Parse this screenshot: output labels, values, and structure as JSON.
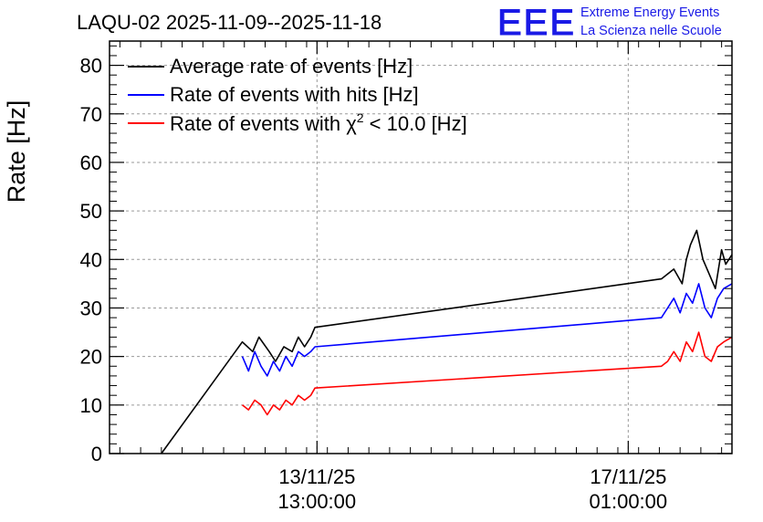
{
  "chart_data": {
    "type": "line",
    "title": "LAQU-02 2025-11-09--2025-11-18",
    "ylabel": "Rate [Hz]",
    "xlabel": "",
    "ylim": [
      0,
      85
    ],
    "yticks": [
      0,
      10,
      20,
      30,
      40,
      50,
      60,
      70,
      80
    ],
    "xlim": [
      0,
      15
    ],
    "xticks": [
      {
        "x": 5.0,
        "date": "13/11/25",
        "time": "13:00:00"
      },
      {
        "x": 12.5,
        "date": "17/11/25",
        "time": "01:00:00"
      }
    ],
    "grid": true,
    "legend_position": "top-left",
    "series": [
      {
        "name": "Average rate of events [Hz]",
        "color": "#000000",
        "x": [
          1.25,
          3.2,
          3.45,
          3.6,
          3.85,
          4.0,
          4.2,
          4.4,
          4.55,
          4.7,
          4.85,
          4.95,
          13.3,
          13.6,
          13.8,
          13.9,
          14.0,
          14.15,
          14.3,
          14.45,
          14.6,
          14.75,
          14.85,
          15.0
        ],
        "values": [
          0,
          23,
          21,
          24,
          21,
          19,
          22,
          21,
          24,
          22,
          24,
          26,
          36,
          38,
          35,
          40,
          43,
          46,
          40,
          37,
          34,
          42,
          39,
          41
        ]
      },
      {
        "name": "Rate of events with hits [Hz]",
        "color": "#0000ff",
        "x": [
          3.2,
          3.35,
          3.5,
          3.65,
          3.8,
          3.95,
          4.1,
          4.25,
          4.4,
          4.55,
          4.7,
          4.85,
          4.95,
          13.3,
          13.45,
          13.6,
          13.75,
          13.9,
          14.05,
          14.2,
          14.35,
          14.5,
          14.65,
          14.8,
          15.0
        ],
        "values": [
          20,
          17,
          21,
          18,
          16,
          19,
          17,
          20,
          18,
          21,
          20,
          21,
          22,
          28,
          30,
          32,
          29,
          33,
          31,
          35,
          30,
          28,
          32,
          34,
          35
        ]
      },
      {
        "name": "Rate of events with χ² < 10.0 [Hz]",
        "color": "#ff0000",
        "x": [
          3.2,
          3.35,
          3.5,
          3.65,
          3.8,
          3.95,
          4.1,
          4.25,
          4.4,
          4.55,
          4.7,
          4.85,
          4.95,
          13.3,
          13.45,
          13.6,
          13.75,
          13.9,
          14.05,
          14.2,
          14.35,
          14.5,
          14.65,
          14.8,
          15.0
        ],
        "values": [
          10,
          9,
          11,
          10,
          8,
          10,
          9,
          11,
          10,
          12,
          11,
          12,
          13.5,
          18,
          19,
          21,
          19,
          23,
          21,
          25,
          20,
          19,
          22,
          23,
          24
        ]
      }
    ]
  },
  "legend": [
    {
      "prefix": "Average rate of events [Hz]",
      "sup": "",
      "suffix": ""
    },
    {
      "prefix": "Rate of events with hits [Hz]",
      "sup": "",
      "suffix": ""
    },
    {
      "prefix": "Rate of events with χ",
      "sup": "2",
      "suffix": " < 10.0 [Hz]"
    }
  ],
  "logo": {
    "mark": "EEE",
    "line1": "Extreme Energy Events",
    "line2": "La Scienza nelle Scuole",
    "color": "#1a1ae6"
  }
}
